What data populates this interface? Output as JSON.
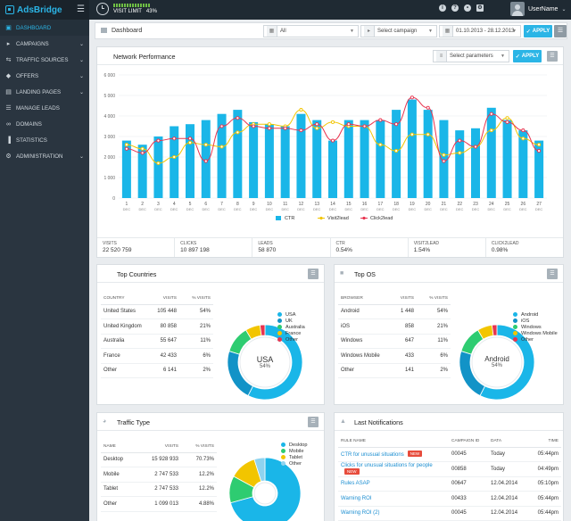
{
  "app": {
    "name": "AdsBridge"
  },
  "topbar": {
    "visit_label": "VISIT LIMIT",
    "visit_pct": "43%",
    "visit_fraction": 0.43,
    "user_name": "UserName",
    "icons": [
      "info-icon",
      "help-icon",
      "bell-icon",
      "settings-icon"
    ]
  },
  "sidebar": {
    "items": [
      {
        "label": "DASHBOARD",
        "icon": "dashboard-icon",
        "active": true,
        "chevron": false
      },
      {
        "label": "CAMPAIGNS",
        "icon": "megaphone-icon",
        "chevron": true
      },
      {
        "label": "TRAFFIC SOURCES",
        "icon": "traffic-icon",
        "chevron": true
      },
      {
        "label": "OFFERS",
        "icon": "tag-icon",
        "chevron": true
      },
      {
        "label": "LANDING PAGES",
        "icon": "page-icon",
        "chevron": true
      },
      {
        "label": "MANAGE LEADS",
        "icon": "leads-icon",
        "chevron": false
      },
      {
        "label": "DOMAINS",
        "icon": "link-icon",
        "chevron": false
      },
      {
        "label": "STATISTICS",
        "icon": "stats-icon",
        "chevron": false
      },
      {
        "label": "ADMINISTRATION",
        "icon": "gear-icon",
        "chevron": true
      }
    ]
  },
  "header": {
    "breadcrumb": "Dashboard",
    "filter_all": "All",
    "campaign_placeholder": "Select campaign",
    "date_range": "01.10.2013 - 28.12.2013",
    "apply_label": "APPLY"
  },
  "network": {
    "title": "Network Performance",
    "param_placeholder": "Select parameters",
    "apply_label": "APPLY",
    "stats": [
      {
        "label": "VISITS",
        "value": "22 520 759"
      },
      {
        "label": "CLICKS",
        "value": "10 897 198"
      },
      {
        "label": "LEADS",
        "value": "58 870"
      },
      {
        "label": "CTR",
        "value": "0.54%"
      },
      {
        "label": "VISIT2LEAD",
        "value": "1.54%"
      },
      {
        "label": "CLICK2LEAD",
        "value": "0.98%"
      }
    ]
  },
  "chart_data": {
    "type": "bar",
    "categories": [
      "1",
      "2",
      "3",
      "4",
      "5",
      "6",
      "7",
      "8",
      "9",
      "10",
      "11",
      "12",
      "13",
      "14",
      "15",
      "16",
      "17",
      "18",
      "19",
      "20",
      "21",
      "22",
      "23",
      "24",
      "25",
      "26",
      "27"
    ],
    "category_sublabel": "DEC",
    "ylim": [
      0,
      6000
    ],
    "yticks": [
      "0",
      "1 000",
      "2 000",
      "3 000",
      "4 000",
      "5 000",
      "6 000"
    ],
    "colors": {
      "CTR": "#1ab6e8",
      "Visit2lead": "#f2c500",
      "Click2lead": "#e8344f"
    },
    "series": [
      {
        "name": "CTR",
        "kind": "bar",
        "values": [
          2800,
          2600,
          3000,
          3500,
          3600,
          3800,
          4100,
          4300,
          3700,
          3600,
          3500,
          4100,
          3800,
          2800,
          3800,
          3800,
          3800,
          4300,
          4800,
          4300,
          3800,
          3300,
          3400,
          4400,
          3800,
          3300,
          2800
        ]
      },
      {
        "name": "Visit2lead",
        "kind": "line",
        "values": [
          2600,
          2400,
          1700,
          2000,
          2700,
          2600,
          2500,
          3200,
          3600,
          3600,
          3500,
          4300,
          3400,
          3700,
          3500,
          3500,
          2600,
          2300,
          3100,
          3100,
          2100,
          2200,
          2500,
          3300,
          3900,
          2900,
          2600
        ]
      },
      {
        "name": "Click2lead",
        "kind": "line",
        "values": [
          2400,
          2200,
          2800,
          2900,
          2900,
          1800,
          3500,
          3900,
          3500,
          3400,
          3400,
          3300,
          3600,
          2800,
          3600,
          3500,
          3800,
          3600,
          4900,
          4400,
          1800,
          2800,
          2500,
          4100,
          3700,
          3300,
          2300
        ]
      }
    ]
  },
  "top_countries": {
    "title": "Top Countries",
    "columns": [
      "COUNTRY",
      "VISITS",
      "% VISITS"
    ],
    "rows": [
      [
        "United States",
        "105 448",
        "54%"
      ],
      [
        "United Kingdom",
        "80 858",
        "21%"
      ],
      [
        "Australia",
        "55 647",
        "11%"
      ],
      [
        "France",
        "42 433",
        "6%"
      ],
      [
        "Other",
        "6 141",
        "2%"
      ]
    ],
    "donut_center": "USA",
    "donut_pct": "54%",
    "legend": [
      "USA",
      "UK",
      "Australia",
      "France",
      "Other"
    ],
    "donut": {
      "values": [
        54,
        21,
        11,
        6,
        2
      ],
      "colors": [
        "#1ab6e8",
        "#1293c7",
        "#2ecc71",
        "#f2c500",
        "#e8344f"
      ]
    }
  },
  "top_os": {
    "title": "Top OS",
    "columns": [
      "BROWSER",
      "VISITS",
      "% VISITS"
    ],
    "rows": [
      [
        "Android",
        "1 448",
        "54%"
      ],
      [
        "iOS",
        "858",
        "21%"
      ],
      [
        "Windows",
        "647",
        "11%"
      ],
      [
        "Windows Mobile",
        "433",
        "6%"
      ],
      [
        "Other",
        "141",
        "2%"
      ]
    ],
    "donut_center": "Android",
    "donut_pct": "54%",
    "legend": [
      "Android",
      "iOS",
      "Windows",
      "Windows Mobile",
      "Other"
    ],
    "donut": {
      "values": [
        54,
        21,
        11,
        6,
        2
      ],
      "colors": [
        "#1ab6e8",
        "#1293c7",
        "#2ecc71",
        "#f2c500",
        "#e8344f"
      ]
    }
  },
  "traffic_type": {
    "title": "Traffic Type",
    "columns": [
      "NAME",
      "VISITS",
      "% VISITS"
    ],
    "rows": [
      [
        "Desktop",
        "15 928 933",
        "70.73%"
      ],
      [
        "Mobile",
        "2 747 533",
        "12.2%"
      ],
      [
        "Tablet",
        "2 747 533",
        "12.2%"
      ],
      [
        "Other",
        "1 099 013",
        "4.88%"
      ]
    ],
    "legend": [
      "Desktop",
      "Mobile",
      "Tablet",
      "Other"
    ],
    "donut": {
      "values": [
        70.73,
        12.2,
        12.2,
        4.88
      ],
      "colors": [
        "#1ab6e8",
        "#2ecc71",
        "#f2c500",
        "#8fd3ef"
      ]
    }
  },
  "notifications": {
    "title": "Last Notifications",
    "columns": [
      "RULE NAME",
      "CAMPAIGN ID",
      "DATA",
      "TIME"
    ],
    "new_label": "NEW",
    "rows": [
      {
        "name": "CTR for unusual situations",
        "is_new": true,
        "campaign": "00045",
        "date": "Today",
        "time": "05:44pm"
      },
      {
        "name": "Clicks for unusual situations for people",
        "is_new": true,
        "campaign": "00858",
        "date": "Today",
        "time": "04:49pm"
      },
      {
        "name": "Rules ASAP",
        "is_new": false,
        "campaign": "00647",
        "date": "12.04.2014",
        "time": "05:10pm"
      },
      {
        "name": "Warning ROI",
        "is_new": false,
        "campaign": "00433",
        "date": "12.04.2014",
        "time": "05:44pm"
      },
      {
        "name": "Warning ROI (2)",
        "is_new": false,
        "campaign": "00045",
        "date": "12.04.2014",
        "time": "05:44pm"
      }
    ]
  }
}
